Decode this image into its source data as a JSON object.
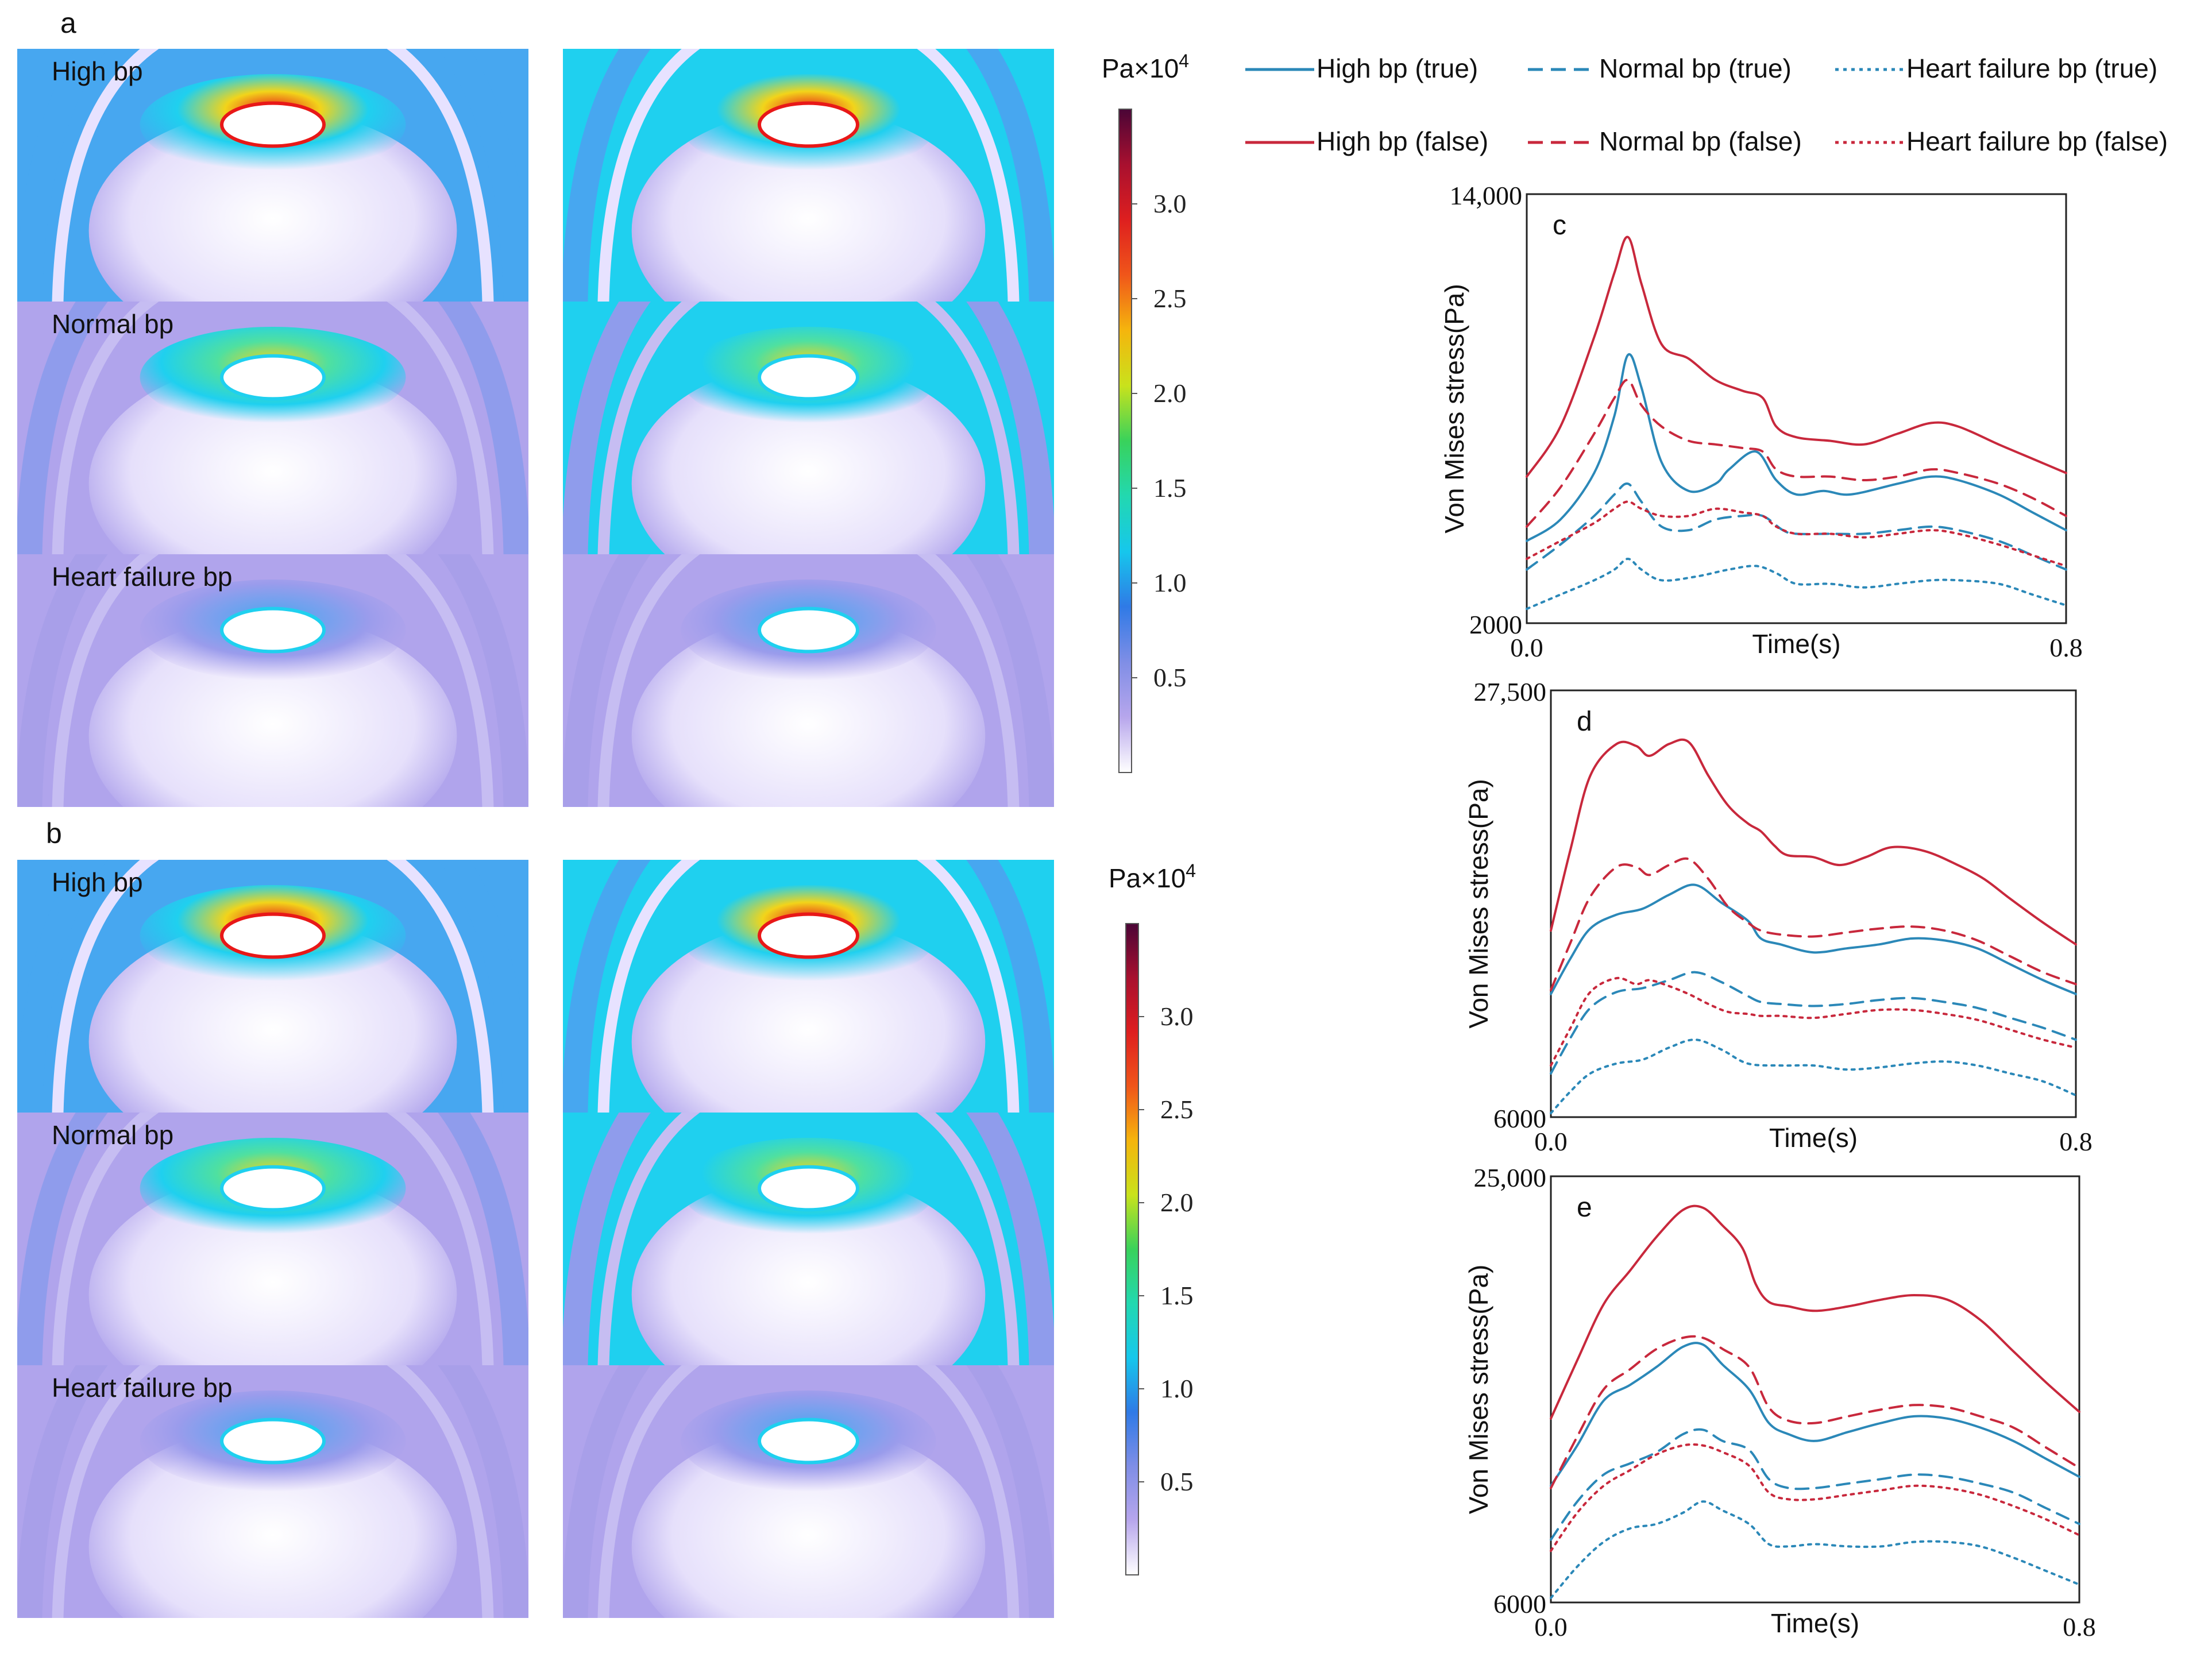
{
  "panel_labels": {
    "a": "a",
    "b": "b",
    "c": "c",
    "d": "d",
    "e": "e"
  },
  "stress_maps": {
    "row_labels": [
      "High bp",
      "Normal bp",
      "Heart failure bp"
    ],
    "colorbar": {
      "unit_label": "Pa",
      "unit_multiplier": "×10",
      "unit_exponent": "4",
      "ticks": [
        "3.0",
        "2.5",
        "2.0",
        "1.5",
        "1.0",
        "0.5"
      ],
      "tick_values": [
        3.0,
        2.5,
        2.0,
        1.5,
        1.0,
        0.5
      ],
      "range": [
        0,
        3.5
      ],
      "colors": [
        "#ffffff",
        "#b7a6ec",
        "#7f8ee6",
        "#2f7ae6",
        "#16c7ec",
        "#22d8b0",
        "#39d25b",
        "#c9e21c",
        "#f5b50d",
        "#f0561a",
        "#de1f1f",
        "#a8102f",
        "#4a0536"
      ]
    },
    "colors": {
      "cyan": "#1fd0ef",
      "blue": "#47a7f0",
      "lavender": "#b0a4ec",
      "white": "#f6f3ff",
      "hot": "#e81818",
      "yellow": "#f2d41a",
      "green": "#4fe0a0"
    }
  },
  "legend": {
    "entries": [
      {
        "label": "High bp (true)",
        "color": "#2b88b8",
        "style": "solid"
      },
      {
        "label": "Normal bp (true)",
        "color": "#2b88b8",
        "style": "dashed"
      },
      {
        "label": "Heart failure bp (true)",
        "color": "#2b88b8",
        "style": "dotted"
      },
      {
        "label": "High bp (false)",
        "color": "#c8283c",
        "style": "solid"
      },
      {
        "label": "Normal bp (false)",
        "color": "#c8283c",
        "style": "dashed"
      },
      {
        "label": "Heart failure bp (false)",
        "color": "#c8283c",
        "style": "dotted"
      }
    ]
  },
  "chart_data": [
    {
      "panel": "c",
      "type": "line",
      "xlabel": "Time(s)",
      "ylabel": "Von Mises stress(Pa)",
      "xlim": [
        0,
        0.8
      ],
      "ylim": [
        2000,
        14000
      ],
      "xtick_labels": [
        "0.0",
        "0.8"
      ],
      "ytick_labels": [
        "2000",
        "14,000"
      ],
      "series": [
        {
          "name": "High bp (true)",
          "color": "#2b88b8",
          "style": "solid",
          "x": [
            0,
            0.05,
            0.1,
            0.13,
            0.15,
            0.17,
            0.2,
            0.24,
            0.28,
            0.3,
            0.34,
            0.37,
            0.4,
            0.44,
            0.48,
            0.55,
            0.6,
            0.64,
            0.7,
            0.75,
            0.8
          ],
          "y": [
            4300,
            4900,
            6200,
            7800,
            9500,
            8600,
            6500,
            5700,
            5900,
            6300,
            6800,
            6000,
            5600,
            5700,
            5600,
            5900,
            6100,
            6000,
            5600,
            5100,
            4600
          ]
        },
        {
          "name": "Normal bp (true)",
          "color": "#2b88b8",
          "style": "dashed",
          "x": [
            0,
            0.05,
            0.1,
            0.13,
            0.15,
            0.17,
            0.2,
            0.24,
            0.28,
            0.32,
            0.35,
            0.38,
            0.4,
            0.45,
            0.5,
            0.55,
            0.6,
            0.64,
            0.7,
            0.75,
            0.8
          ],
          "y": [
            3500,
            4200,
            5000,
            5600,
            5900,
            5400,
            4700,
            4600,
            4900,
            5000,
            5000,
            4600,
            4500,
            4500,
            4500,
            4600,
            4700,
            4600,
            4300,
            3900,
            3500
          ]
        },
        {
          "name": "Heart failure bp (true)",
          "color": "#2b88b8",
          "style": "dotted",
          "x": [
            0,
            0.05,
            0.1,
            0.13,
            0.15,
            0.17,
            0.2,
            0.25,
            0.3,
            0.34,
            0.37,
            0.4,
            0.45,
            0.5,
            0.55,
            0.6,
            0.64,
            0.7,
            0.75,
            0.8
          ],
          "y": [
            2400,
            2800,
            3200,
            3500,
            3800,
            3500,
            3200,
            3300,
            3500,
            3600,
            3400,
            3100,
            3100,
            3000,
            3100,
            3200,
            3200,
            3100,
            2800,
            2500
          ]
        },
        {
          "name": "High bp (false)",
          "color": "#c8283c",
          "style": "solid",
          "x": [
            0,
            0.05,
            0.1,
            0.13,
            0.15,
            0.17,
            0.2,
            0.24,
            0.28,
            0.32,
            0.35,
            0.37,
            0.4,
            0.45,
            0.5,
            0.55,
            0.6,
            0.64,
            0.7,
            0.75,
            0.8
          ],
          "y": [
            6100,
            7500,
            10000,
            11800,
            12800,
            11500,
            9800,
            9400,
            8800,
            8500,
            8300,
            7500,
            7200,
            7100,
            7000,
            7300,
            7600,
            7500,
            7000,
            6600,
            6200
          ]
        },
        {
          "name": "Normal bp (false)",
          "color": "#c8283c",
          "style": "dashed",
          "x": [
            0,
            0.05,
            0.1,
            0.13,
            0.15,
            0.17,
            0.2,
            0.24,
            0.28,
            0.32,
            0.35,
            0.37,
            0.4,
            0.45,
            0.5,
            0.55,
            0.6,
            0.64,
            0.7,
            0.75,
            0.8
          ],
          "y": [
            4700,
            5800,
            7300,
            8300,
            8800,
            8100,
            7500,
            7100,
            7000,
            6900,
            6800,
            6300,
            6100,
            6100,
            6000,
            6100,
            6300,
            6200,
            5900,
            5500,
            5000
          ]
        },
        {
          "name": "Heart failure bp (false)",
          "color": "#c8283c",
          "style": "dotted",
          "x": [
            0,
            0.05,
            0.1,
            0.13,
            0.15,
            0.17,
            0.2,
            0.24,
            0.28,
            0.32,
            0.35,
            0.37,
            0.4,
            0.45,
            0.5,
            0.55,
            0.6,
            0.64,
            0.7,
            0.75,
            0.8
          ],
          "y": [
            3800,
            4300,
            4800,
            5200,
            5400,
            5200,
            5000,
            5000,
            5200,
            5100,
            5000,
            4700,
            4500,
            4500,
            4400,
            4500,
            4600,
            4500,
            4200,
            3900,
            3600
          ]
        }
      ]
    },
    {
      "panel": "d",
      "type": "line",
      "xlabel": "Time(s)",
      "ylabel": "Von Mises stress(Pa)",
      "xlim": [
        0,
        0.8
      ],
      "ylim": [
        6000,
        27500
      ],
      "xtick_labels": [
        "0.0",
        "0.8"
      ],
      "ytick_labels": [
        "6000",
        "27,500"
      ],
      "series": [
        {
          "name": "High bp (true)",
          "color": "#2b88b8",
          "style": "solid",
          "x": [
            0,
            0.03,
            0.06,
            0.1,
            0.14,
            0.18,
            0.22,
            0.26,
            0.3,
            0.32,
            0.35,
            0.4,
            0.45,
            0.5,
            0.55,
            0.6,
            0.65,
            0.7,
            0.75,
            0.8
          ],
          "y": [
            12200,
            14000,
            15500,
            16200,
            16500,
            17200,
            17700,
            16800,
            15900,
            15000,
            14700,
            14300,
            14500,
            14700,
            15000,
            14900,
            14500,
            13700,
            12900,
            12200
          ]
        },
        {
          "name": "Normal bp (true)",
          "color": "#2b88b8",
          "style": "dashed",
          "x": [
            0,
            0.03,
            0.06,
            0.1,
            0.14,
            0.18,
            0.22,
            0.26,
            0.3,
            0.32,
            0.35,
            0.4,
            0.45,
            0.5,
            0.55,
            0.6,
            0.65,
            0.7,
            0.75,
            0.8
          ],
          "y": [
            8200,
            10000,
            11500,
            12300,
            12500,
            12900,
            13300,
            12800,
            12100,
            11800,
            11700,
            11600,
            11700,
            11900,
            12000,
            11800,
            11500,
            11000,
            10500,
            9900
          ]
        },
        {
          "name": "Heart failure bp (true)",
          "color": "#2b88b8",
          "style": "dotted",
          "x": [
            0,
            0.03,
            0.06,
            0.1,
            0.14,
            0.18,
            0.22,
            0.26,
            0.3,
            0.35,
            0.4,
            0.45,
            0.5,
            0.55,
            0.6,
            0.65,
            0.7,
            0.75,
            0.8
          ],
          "y": [
            6200,
            7300,
            8200,
            8700,
            8900,
            9500,
            9900,
            9400,
            8700,
            8600,
            8600,
            8400,
            8500,
            8700,
            8800,
            8600,
            8200,
            7800,
            7100
          ]
        },
        {
          "name": "High bp (false)",
          "color": "#c8283c",
          "style": "solid",
          "x": [
            0,
            0.03,
            0.06,
            0.1,
            0.13,
            0.15,
            0.18,
            0.21,
            0.24,
            0.27,
            0.3,
            0.32,
            0.34,
            0.36,
            0.4,
            0.44,
            0.48,
            0.52,
            0.57,
            0.62,
            0.66,
            0.7,
            0.75,
            0.8
          ],
          "y": [
            15400,
            19500,
            23200,
            24800,
            24700,
            24200,
            24800,
            24900,
            23200,
            21700,
            20800,
            20400,
            19700,
            19200,
            19100,
            18700,
            19100,
            19600,
            19400,
            18700,
            18000,
            17000,
            15800,
            14700
          ]
        },
        {
          "name": "Normal bp (false)",
          "color": "#c8283c",
          "style": "dashed",
          "x": [
            0,
            0.03,
            0.06,
            0.1,
            0.13,
            0.15,
            0.18,
            0.21,
            0.24,
            0.27,
            0.3,
            0.32,
            0.35,
            0.4,
            0.45,
            0.5,
            0.55,
            0.6,
            0.65,
            0.7,
            0.75,
            0.8
          ],
          "y": [
            12400,
            14800,
            17100,
            18600,
            18600,
            18200,
            18700,
            19000,
            18000,
            16600,
            15800,
            15400,
            15200,
            15100,
            15300,
            15500,
            15600,
            15400,
            14900,
            14100,
            13300,
            12700
          ]
        },
        {
          "name": "Heart failure bp (false)",
          "color": "#c8283c",
          "style": "dotted",
          "x": [
            0,
            0.03,
            0.06,
            0.1,
            0.13,
            0.15,
            0.18,
            0.21,
            0.24,
            0.27,
            0.3,
            0.32,
            0.35,
            0.4,
            0.45,
            0.5,
            0.55,
            0.6,
            0.65,
            0.7,
            0.75,
            0.8
          ],
          "y": [
            8600,
            10500,
            12300,
            13000,
            12700,
            12900,
            12600,
            12200,
            11700,
            11300,
            11200,
            11100,
            11100,
            11000,
            11200,
            11400,
            11400,
            11200,
            10900,
            10400,
            9900,
            9500
          ]
        }
      ]
    },
    {
      "panel": "e",
      "type": "line",
      "xlabel": "Time(s)",
      "ylabel": "Von Mises stress(Pa)",
      "xlim": [
        0,
        0.8
      ],
      "ylim": [
        6000,
        25000
      ],
      "xtick_labels": [
        "0.0",
        "0.8"
      ],
      "ytick_labels": [
        "6000",
        "25,000"
      ],
      "series": [
        {
          "name": "High bp (true)",
          "color": "#2b88b8",
          "style": "solid",
          "x": [
            0,
            0.04,
            0.08,
            0.12,
            0.16,
            0.2,
            0.23,
            0.26,
            0.3,
            0.33,
            0.36,
            0.4,
            0.45,
            0.5,
            0.55,
            0.6,
            0.65,
            0.7,
            0.75,
            0.8
          ],
          "y": [
            11200,
            13000,
            15000,
            15700,
            16500,
            17400,
            17500,
            16600,
            15500,
            14000,
            13500,
            13200,
            13600,
            14000,
            14300,
            14200,
            13800,
            13200,
            12400,
            11600
          ]
        },
        {
          "name": "Normal bp (true)",
          "color": "#2b88b8",
          "style": "dashed",
          "x": [
            0,
            0.04,
            0.08,
            0.12,
            0.16,
            0.2,
            0.23,
            0.26,
            0.3,
            0.33,
            0.36,
            0.4,
            0.45,
            0.5,
            0.55,
            0.6,
            0.65,
            0.7,
            0.75,
            0.8
          ],
          "y": [
            8800,
            10500,
            11700,
            12200,
            12700,
            13500,
            13700,
            13200,
            12800,
            11500,
            11100,
            11100,
            11300,
            11500,
            11700,
            11600,
            11300,
            10900,
            10200,
            9500
          ]
        },
        {
          "name": "Heart failure bp (true)",
          "color": "#2b88b8",
          "style": "dotted",
          "x": [
            0,
            0.04,
            0.08,
            0.12,
            0.16,
            0.2,
            0.23,
            0.26,
            0.3,
            0.33,
            0.36,
            0.4,
            0.45,
            0.5,
            0.55,
            0.6,
            0.65,
            0.7,
            0.75,
            0.8
          ],
          "y": [
            6200,
            7600,
            8700,
            9300,
            9500,
            10000,
            10500,
            10100,
            9500,
            8600,
            8500,
            8600,
            8500,
            8500,
            8700,
            8700,
            8500,
            8000,
            7400,
            6800
          ]
        },
        {
          "name": "High bp (false)",
          "color": "#c8283c",
          "style": "solid",
          "x": [
            0,
            0.04,
            0.08,
            0.12,
            0.16,
            0.2,
            0.23,
            0.26,
            0.29,
            0.31,
            0.33,
            0.36,
            0.4,
            0.45,
            0.5,
            0.55,
            0.6,
            0.65,
            0.7,
            0.75,
            0.8
          ],
          "y": [
            14200,
            16800,
            19300,
            20800,
            22300,
            23500,
            23600,
            22800,
            21800,
            20200,
            19400,
            19200,
            19000,
            19200,
            19500,
            19700,
            19500,
            18600,
            17200,
            15800,
            14500
          ]
        },
        {
          "name": "Normal bp (false)",
          "color": "#c8283c",
          "style": "dashed",
          "x": [
            0,
            0.04,
            0.08,
            0.12,
            0.16,
            0.2,
            0.23,
            0.26,
            0.3,
            0.33,
            0.36,
            0.4,
            0.45,
            0.5,
            0.55,
            0.6,
            0.65,
            0.7,
            0.75,
            0.8
          ],
          "y": [
            11100,
            13400,
            15500,
            16400,
            17300,
            17800,
            17800,
            17300,
            16500,
            14700,
            14100,
            14000,
            14300,
            14600,
            14800,
            14700,
            14300,
            13800,
            12900,
            12000
          ]
        },
        {
          "name": "Heart failure bp (false)",
          "color": "#c8283c",
          "style": "dotted",
          "x": [
            0,
            0.04,
            0.08,
            0.12,
            0.16,
            0.2,
            0.23,
            0.26,
            0.3,
            0.33,
            0.36,
            0.4,
            0.45,
            0.5,
            0.55,
            0.6,
            0.65,
            0.7,
            0.75,
            0.8
          ],
          "y": [
            8300,
            10000,
            11200,
            11900,
            12600,
            13000,
            13000,
            12700,
            12100,
            10900,
            10600,
            10600,
            10800,
            11000,
            11200,
            11100,
            10800,
            10300,
            9700,
            9000
          ]
        }
      ]
    }
  ]
}
